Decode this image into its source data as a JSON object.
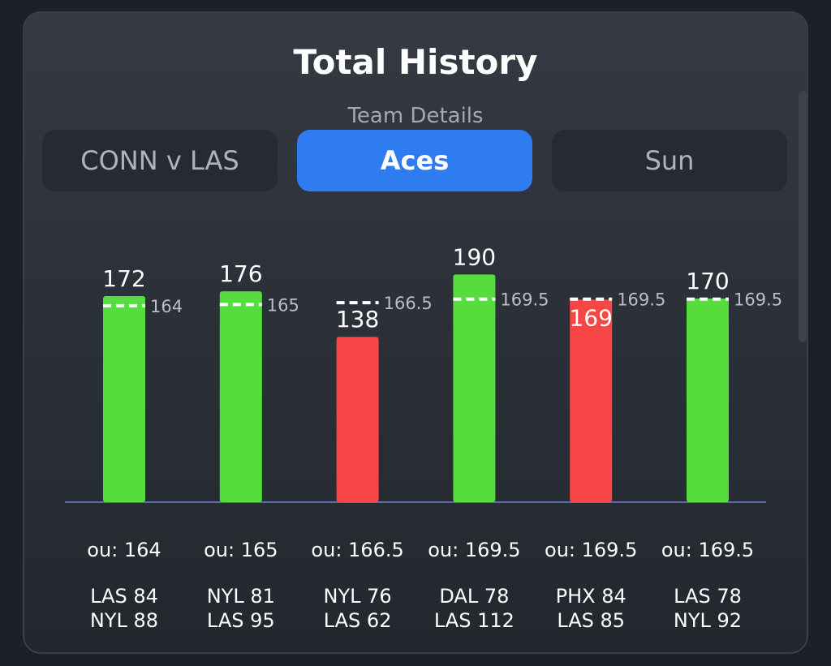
{
  "card": {
    "title": "Total History",
    "subtitle": "Team Details"
  },
  "tabs": [
    {
      "label": "CONN v LAS",
      "active": false
    },
    {
      "label": "Aces",
      "active": true
    },
    {
      "label": "Sun",
      "active": false
    }
  ],
  "colors": {
    "over": "#55dd3d",
    "under": "#f64646",
    "accent": "#2f7bf0",
    "line": "#ffffff"
  },
  "chart_data": {
    "type": "bar",
    "categories": [
      "LAS 84 / NYL 88",
      "NYL 81 / LAS 95",
      "NYL 76 / LAS 62",
      "DAL 78 / LAS 112",
      "PHX 84 / LAS 85",
      "LAS 78 / NYL 92"
    ],
    "values": [
      172,
      176,
      138,
      190,
      169,
      170
    ],
    "ou_lines": [
      164,
      165,
      166.5,
      169.5,
      169.5,
      169.5
    ],
    "ou_labels": [
      "ou: 164",
      "ou: 165",
      "ou: 166.5",
      "ou: 169.5",
      "ou: 169.5",
      "ou: 169.5"
    ],
    "games": [
      {
        "line1": "LAS 84",
        "line2": "NYL 88"
      },
      {
        "line1": "NYL 81",
        "line2": "LAS 95"
      },
      {
        "line1": "NYL 76",
        "line2": "LAS 62"
      },
      {
        "line1": "DAL 78",
        "line2": "LAS 112"
      },
      {
        "line1": "PHX 84",
        "line2": "LAS 85"
      },
      {
        "line1": "LAS 78",
        "line2": "NYL 92"
      }
    ],
    "result": [
      "over",
      "over",
      "under",
      "over",
      "under",
      "over"
    ],
    "grid": false
  }
}
